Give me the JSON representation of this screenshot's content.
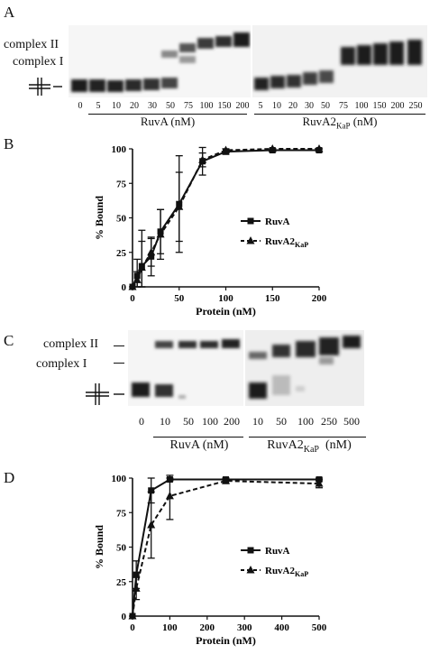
{
  "panels": {
    "A": {
      "letter": "A",
      "complex_II": "complex II",
      "complex_I": "complex I",
      "ruva_lanes": [
        "0",
        "5",
        "10",
        "20",
        "30",
        "50",
        "75",
        "100",
        "150",
        "200"
      ],
      "ruva2_lanes": [
        "5",
        "10",
        "20",
        "30",
        "50",
        "75",
        "100",
        "150",
        "200",
        "250"
      ],
      "ruva_label": "RuvA (nM)",
      "ruva2_label_main": "RuvA2",
      "ruva2_label_sub": "KaP",
      "ruva2_label_tail": " (nM)"
    },
    "B": {
      "letter": "B"
    },
    "C": {
      "letter": "C",
      "complex_II": "complex II",
      "complex_I": "complex I",
      "ruva_lanes": [
        "0",
        "10",
        "50",
        "100",
        "200"
      ],
      "ruva2_lanes": [
        "10",
        "50",
        "100",
        "250",
        "500"
      ],
      "ruva_label": "RuvA (nM)",
      "ruva2_label_main": "RuvA2",
      "ruva2_label_sub": "KaP",
      "ruva2_label_tail": "  (nM)"
    },
    "D": {
      "letter": "D"
    }
  },
  "chart_data": [
    {
      "type": "line",
      "panel": "B",
      "xlabel": "Protein (nM)",
      "ylabel": "% Bound",
      "xlim": [
        0,
        200
      ],
      "ylim": [
        0,
        100
      ],
      "xticks": [
        "0",
        "50",
        "100",
        "150",
        "200"
      ],
      "yticks": [
        "0",
        "25",
        "50",
        "75",
        "100"
      ],
      "legend_placement": "right",
      "series": [
        {
          "name": "RuvA",
          "marker": "square",
          "style": "solid",
          "x": [
            0,
            5,
            10,
            20,
            30,
            50,
            75,
            100,
            150,
            200
          ],
          "y": [
            0,
            8,
            15,
            22,
            40,
            60,
            91,
            98,
            99,
            99
          ],
          "err": [
            0,
            12,
            18,
            14,
            16,
            35,
            10,
            2,
            1,
            1
          ]
        },
        {
          "name": "RuvA2",
          "name_sub": "KaP",
          "marker": "triangle",
          "style": "dashed",
          "x": [
            0,
            5,
            10,
            20,
            30,
            50,
            75,
            100,
            150,
            200
          ],
          "y": [
            0,
            5,
            14,
            25,
            38,
            58,
            92,
            99,
            100,
            100
          ],
          "err": [
            0,
            6,
            27,
            10,
            18,
            25,
            5,
            1,
            0,
            0
          ]
        }
      ]
    },
    {
      "type": "line",
      "panel": "D",
      "xlabel": "Protein (nM)",
      "ylabel": "% Bound",
      "xlim": [
        0,
        500
      ],
      "ylim": [
        0,
        100
      ],
      "xticks": [
        "0",
        "100",
        "200",
        "300",
        "400",
        "500"
      ],
      "yticks": [
        "0",
        "25",
        "50",
        "75",
        "100"
      ],
      "legend_placement": "right",
      "series": [
        {
          "name": "RuvA",
          "marker": "square",
          "style": "solid",
          "x": [
            0,
            10,
            50,
            100,
            250,
            500
          ],
          "y": [
            0,
            30,
            91,
            99,
            99,
            99
          ],
          "err": [
            0,
            10,
            9,
            1,
            1,
            1
          ]
        },
        {
          "name": "RuvA2",
          "name_sub": "KaP",
          "marker": "triangle",
          "style": "dashed",
          "x": [
            0,
            10,
            50,
            100,
            250,
            500
          ],
          "y": [
            0,
            20,
            66,
            87,
            98,
            96
          ],
          "err": [
            0,
            8,
            24,
            17,
            2,
            3
          ]
        }
      ]
    }
  ]
}
